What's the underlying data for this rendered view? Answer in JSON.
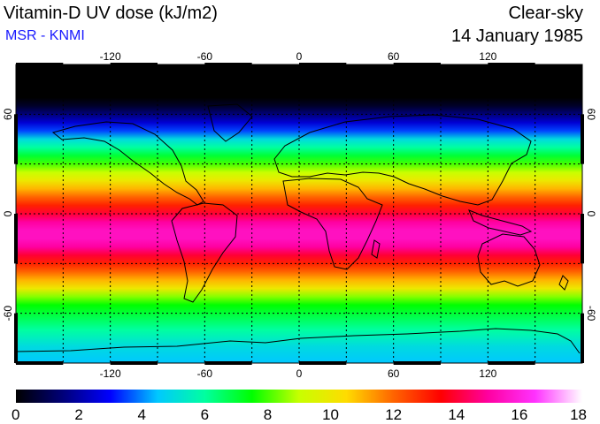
{
  "header": {
    "title": "Vitamin-D UV dose (kJ/m2)",
    "source": "MSR - KNMI",
    "source_color": "#1a1aff",
    "sky": "Clear-sky",
    "date": "14 January 1985"
  },
  "map": {
    "lon_range": [
      -180,
      180
    ],
    "lat_range": [
      -90,
      90
    ],
    "lon_ticks": [
      {
        "value": -120,
        "label": "-120"
      },
      {
        "value": -60,
        "label": "-60"
      },
      {
        "value": 0,
        "label": "0"
      },
      {
        "value": 60,
        "label": "60"
      },
      {
        "value": 120,
        "label": "120"
      }
    ],
    "lat_ticks": [
      {
        "value": 60,
        "label": "60"
      },
      {
        "value": 0,
        "label": "0"
      },
      {
        "value": -60,
        "label": "-60"
      }
    ],
    "grid_lon": [
      -150,
      -120,
      -90,
      -60,
      -30,
      0,
      30,
      60,
      90,
      120,
      150
    ],
    "grid_lat": [
      -60,
      -30,
      0,
      30,
      60
    ],
    "dose_by_latitude": [
      [
        90,
        0
      ],
      [
        80,
        0
      ],
      [
        70,
        0
      ],
      [
        65,
        0.5
      ],
      [
        60,
        1.5
      ],
      [
        55,
        2.5
      ],
      [
        50,
        3.5
      ],
      [
        45,
        5
      ],
      [
        40,
        6
      ],
      [
        35,
        7
      ],
      [
        30,
        8
      ],
      [
        25,
        9
      ],
      [
        20,
        10
      ],
      [
        15,
        11
      ],
      [
        10,
        12
      ],
      [
        5,
        13
      ],
      [
        0,
        14
      ],
      [
        -5,
        15
      ],
      [
        -10,
        15.5
      ],
      [
        -15,
        15.5
      ],
      [
        -20,
        15
      ],
      [
        -25,
        14
      ],
      [
        -30,
        13
      ],
      [
        -35,
        12
      ],
      [
        -40,
        11
      ],
      [
        -45,
        10
      ],
      [
        -50,
        8.5
      ],
      [
        -55,
        7.5
      ],
      [
        -60,
        7
      ],
      [
        -65,
        6.5
      ],
      [
        -70,
        6
      ],
      [
        -75,
        5.5
      ],
      [
        -80,
        5
      ],
      [
        -90,
        4.5
      ]
    ]
  },
  "colorbar": {
    "min": 0,
    "max": 18,
    "stops": [
      "#000000",
      "#00007a",
      "#0000ff",
      "#00c8ff",
      "#00ffa0",
      "#00ff00",
      "#c8ff00",
      "#ffdc00",
      "#ff6400",
      "#ff0000",
      "#ff00a0",
      "#ff32ff",
      "#ffffff"
    ],
    "labels": [
      "0",
      "2",
      "4",
      "6",
      "8",
      "10",
      "12",
      "14",
      "16",
      "18"
    ]
  }
}
